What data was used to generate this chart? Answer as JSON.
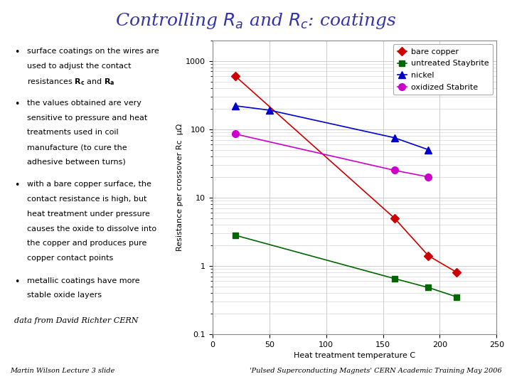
{
  "title": "Controlling $R_a$ and $R_c$: coatings",
  "title_color": "#3333aa",
  "bullet_points": [
    [
      "surface coatings on the wires are",
      "used to adjust the contact",
      "resistances $\\mathbf{R_c}$ and $\\mathbf{R_a}$"
    ],
    [
      "the values obtained are very",
      "sensitive to pressure and heat",
      "treatments used in coil",
      "manufacture (to cure the",
      "adhesive between turns)"
    ],
    [
      "with a bare copper surface, the",
      "contact resistance is high, but",
      "heat treatment under pressure",
      "causes the oxide to dissolve into",
      "the copper and produces pure",
      "copper contact points"
    ],
    [
      "metallic coatings have more",
      "stable oxide layers"
    ]
  ],
  "data_credit": "data from David Richter CERN",
  "footer_left": "Martin Wilson Lecture 3 slide",
  "footer_right": "'Pulsed Superconducting Magnets' CERN Academic Training May 2006",
  "series": [
    {
      "label": "bare copper",
      "color": "#cc0000",
      "marker": "D",
      "markersize": 6,
      "x": [
        20,
        160,
        190,
        215
      ],
      "y": [
        600,
        5,
        1.4,
        0.8
      ]
    },
    {
      "label": "untreated Staybrite",
      "color": "#006600",
      "marker": "s",
      "markersize": 6,
      "x": [
        20,
        160,
        190,
        215
      ],
      "y": [
        2.8,
        0.65,
        0.48,
        0.35
      ]
    },
    {
      "label": "nickel",
      "color": "#0000cc",
      "marker": "^",
      "markersize": 7,
      "x": [
        20,
        50,
        160,
        190
      ],
      "y": [
        220,
        190,
        75,
        50
      ]
    },
    {
      "label": "oxidized Stabrite",
      "color": "#cc00cc",
      "marker": "o",
      "markersize": 7,
      "x": [
        20,
        160,
        190
      ],
      "y": [
        85,
        25,
        20
      ]
    }
  ],
  "xlabel": "Heat treatment temperature C",
  "ylabel": "Resistance per crossover Rc  μΩ",
  "xlim": [
    0,
    250
  ],
  "ylim": [
    0.1,
    2000
  ],
  "xticks": [
    0,
    50,
    100,
    150,
    200,
    250
  ],
  "ytick_labels": [
    0.1,
    1,
    10,
    100,
    1000
  ],
  "background_color": "#ffffff",
  "plot_bg_color": "#ffffff",
  "grid_color": "#cccccc",
  "title_fontsize": 18,
  "bullet_fontsize": 8,
  "footer_fontsize": 7
}
